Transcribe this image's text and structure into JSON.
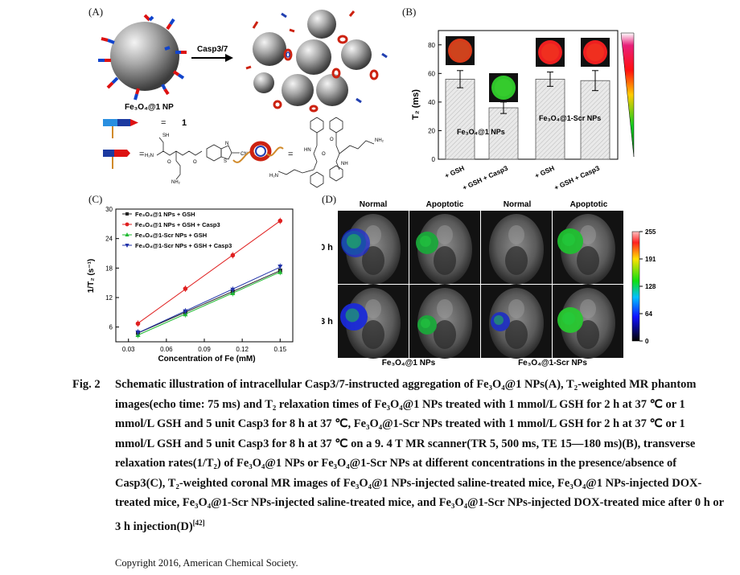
{
  "panelA": {
    "label": "(A)",
    "arrow_label": "Casp3/7",
    "np_label": "Fe₃O₄@1 NP",
    "legend_eq": "=",
    "legend_one": "1",
    "chem_labels": {
      "sh": "SH",
      "h2n": "H₂N",
      "nh2": "NH₂",
      "cn": "CN",
      "o": "O",
      "hn": "HN",
      "nh": "NH",
      "s": "S",
      "n": "N"
    }
  },
  "panelB": {
    "label": "(B)",
    "chart_data": {
      "type": "bar",
      "categories": [
        "+ GSH",
        "+ GSH + Casp3",
        "+ GSH",
        "+ GSH + Casp3"
      ],
      "values": [
        56,
        36,
        56,
        55
      ],
      "errors": [
        6,
        4,
        5,
        7
      ],
      "ylabel": "T₂ (ms)",
      "ylim": [
        0,
        90
      ],
      "yticks": [
        0,
        20,
        40,
        60,
        80
      ],
      "group_labels": [
        "Fe₃O₄@1 NPs",
        "Fe₃O₄@1-Scr NPs"
      ]
    }
  },
  "panelC": {
    "label": "(C)",
    "chart_data": {
      "type": "scatter",
      "xlabel": "Concentration of Fe (mM)",
      "ylabel": "1/T₂ (s⁻¹)",
      "xlim": [
        0.02,
        0.16
      ],
      "ylim": [
        3,
        30
      ],
      "xticks": [
        0.03,
        0.06,
        0.09,
        0.12,
        0.15
      ],
      "yticks": [
        6,
        12,
        18,
        24,
        30
      ],
      "x": [
        0.0375,
        0.075,
        0.1125,
        0.15
      ],
      "series": [
        {
          "name": "Fe₃O₄@1 NPs + GSH",
          "color": "#222222",
          "values": [
            4.8,
            9.0,
            13.2,
            17.5
          ]
        },
        {
          "name": "Fe₃O₄@1 NPs + GSH + Casp3",
          "color": "#e02020",
          "values": [
            6.7,
            13.8,
            20.6,
            27.6
          ]
        },
        {
          "name": "Fe₃O₄@1-Scr NPs + GSH",
          "color": "#22bb33",
          "values": [
            4.4,
            8.6,
            12.9,
            17.2
          ]
        },
        {
          "name": "Fe₃O₄@1-Scr NPs + GSH + Casp3",
          "color": "#2233aa",
          "values": [
            4.9,
            9.2,
            13.6,
            18.3
          ]
        }
      ]
    }
  },
  "panelD": {
    "label": "(D)",
    "col_headers": [
      "Normal",
      "Apoptotic",
      "Normal",
      "Apoptotic"
    ],
    "row_headers": [
      "0 h",
      "3 h"
    ],
    "group_labels": [
      "Fe₃O₄@1 NPs",
      "Fe₃O₄@1-Scr NPs"
    ],
    "colorbar_ticks": [
      "255",
      "191",
      "128",
      "64",
      "0"
    ]
  },
  "caption": {
    "figno": "Fig. 2",
    "text": "Schematic illustration of intracellular Casp3/7-instructed aggregation of Fe₃O₄@1 NPs(A), T₂-weighted MR phantom images(echo time: 75 ms) and T₂ relaxation times of Fe₃O₄@1 NPs treated with 1 mmol/L GSH for 2 h at 37 ℃ or 1 mmol/L GSH and 5 unit Casp3 for 8 h at 37 ℃, Fe₃O₄@1-Scr NPs treated with 1 mmol/L GSH for 2 h at 37 ℃ or 1 mmol/L GSH and 5 unit Casp3 for 8 h at 37 ℃ on a 9. 4 T MR scanner(TR 5, 500 ms, TE 15—180 ms)(B), transverse relaxation rates(1/T₂) of Fe₃O₄@1 NPs or Fe₃O₄@1-Scr NPs at different concentrations in the presence/absence of Casp3(C), T₂-weighted coronal MR images of Fe₃O₄@1 NPs-injected saline-treated mice, Fe₃O₄@1 NPs-injected DOX-treated mice, Fe₃O₄@1-Scr NPs-injected saline-treated mice, and Fe₃O₄@1-Scr NPs-injected DOX-treated mice after 0 h or 3 h injection(D)",
    "ref": "[42]"
  },
  "copyright": "Copyright 2016, American Chemical Society."
}
